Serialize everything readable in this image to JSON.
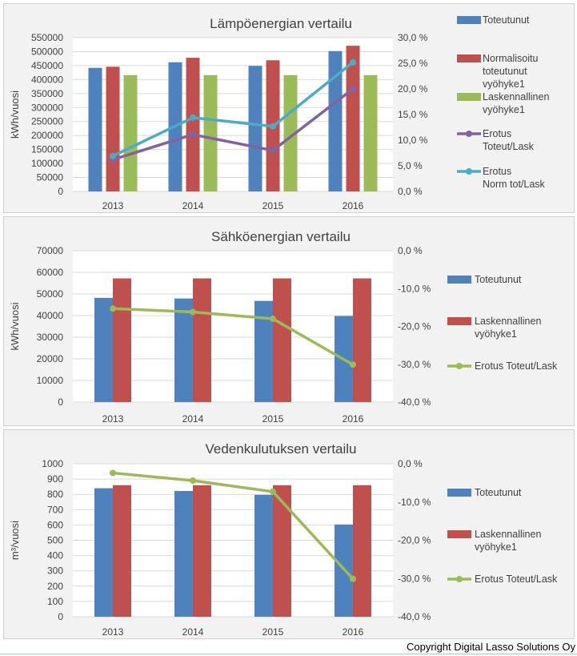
{
  "colors": {
    "blue": "#4f81bd",
    "red": "#c0504d",
    "green": "#9bbb59",
    "purple": "#8064a2",
    "cyan": "#4bacc6",
    "grid": "#d9d9d9",
    "text": "#404040"
  },
  "chart_data": [
    {
      "type": "bar",
      "title": "Lämpöenergian vertailu",
      "ylabel": "kWh/vuosi",
      "categories": [
        "2013",
        "2014",
        "2015",
        "2016"
      ],
      "ylim": [
        0,
        550000
      ],
      "y_ticks": [
        "0",
        "50000",
        "100000",
        "150000",
        "200000",
        "250000",
        "300000",
        "350000",
        "400000",
        "450000",
        "500000",
        "550000"
      ],
      "y2lim": [
        0,
        30
      ],
      "y2_ticks": [
        "0,0 %",
        "5,0 %",
        "10,0 %",
        "15,0 %",
        "20,0 %",
        "25,0 %",
        "30,0 %"
      ],
      "series": [
        {
          "name": "Toteutunut",
          "type": "bar",
          "color": "blue",
          "values": [
            442000,
            462000,
            449000,
            502000
          ]
        },
        {
          "name": "Normalisoitu toteutunut vyöhyke1",
          "type": "bar",
          "color": "red",
          "values": [
            446000,
            478000,
            469000,
            521000
          ]
        },
        {
          "name": "Laskennallinen vyöhyke1",
          "type": "bar",
          "color": "green",
          "values": [
            416000,
            416000,
            416000,
            416000
          ]
        },
        {
          "name": "Erotus Toteut/Lask",
          "type": "line",
          "color": "purple",
          "values": [
            6.2,
            11.1,
            8.0,
            20.0
          ]
        },
        {
          "name": "Erotus Norm tot/Lask",
          "type": "line",
          "color": "cyan",
          "values": [
            6.9,
            14.4,
            12.7,
            25.2
          ]
        }
      ],
      "legend": [
        {
          "label_lines": [
            "Toteutunut"
          ]
        },
        {
          "label_lines": [
            "Normalisoitu",
            "toteutunut",
            "vyöhyke1"
          ]
        },
        {
          "label_lines": [
            "Laskennallinen",
            "vyöhyke1"
          ]
        },
        {
          "label_lines": [
            "Erotus",
            "Toteut/Lask"
          ]
        },
        {
          "label_lines": [
            "Erotus",
            "Norm tot/Lask"
          ]
        }
      ]
    },
    {
      "type": "bar",
      "title": "Sähköenergian vertailu",
      "ylabel": "kWh/vuosi",
      "categories": [
        "2013",
        "2014",
        "2015",
        "2016"
      ],
      "ylim": [
        0,
        70000
      ],
      "y_ticks": [
        "0",
        "10000",
        "20000",
        "30000",
        "40000",
        "50000",
        "60000",
        "70000"
      ],
      "y2lim": [
        -40,
        0
      ],
      "y2_ticks": [
        "-40,0 %",
        "-30,0 %",
        "-20,0 %",
        "-10,0 %",
        "0,0 %"
      ],
      "series": [
        {
          "name": "Toteutunut",
          "type": "bar",
          "color": "blue",
          "values": [
            48200,
            47900,
            46800,
            39800
          ]
        },
        {
          "name": "Laskennallinen vyöhyke1",
          "type": "bar",
          "color": "red",
          "values": [
            57200,
            57200,
            57200,
            57200
          ]
        },
        {
          "name": "Erotus Toteut/Lask",
          "type": "line",
          "color": "green",
          "values": [
            -15.3,
            -16.2,
            -18.0,
            -30.1
          ]
        }
      ],
      "legend": [
        {
          "label_lines": [
            "Toteutunut"
          ]
        },
        {
          "label_lines": [
            "Laskennallinen",
            "vyöhyke1"
          ]
        },
        {
          "label_lines": [
            "Erotus Toteut/Lask"
          ]
        }
      ]
    },
    {
      "type": "bar",
      "title": "Vedenkulutuksen vertailu",
      "ylabel": "m³/vuosi",
      "categories": [
        "2013",
        "2014",
        "2015",
        "2016"
      ],
      "ylim": [
        0,
        1000
      ],
      "y_ticks": [
        "0",
        "100",
        "200",
        "300",
        "400",
        "500",
        "600",
        "700",
        "800",
        "900",
        "1000"
      ],
      "y2lim": [
        -40,
        0
      ],
      "y2_ticks": [
        "-40,0 %",
        "-30,0 %",
        "-20,0 %",
        "-10,0 %",
        "0,0 %"
      ],
      "series": [
        {
          "name": "Toteutunut",
          "type": "bar",
          "color": "blue",
          "values": [
            840,
            822,
            797,
            603
          ]
        },
        {
          "name": "Laskennallinen vyöhyke1",
          "type": "bar",
          "color": "red",
          "values": [
            860,
            860,
            860,
            860
          ]
        },
        {
          "name": "Erotus Toteut/Lask",
          "type": "line",
          "color": "green",
          "values": [
            -2.4,
            -4.4,
            -7.3,
            -30.1
          ]
        }
      ],
      "legend": [
        {
          "label_lines": [
            "Toteutunut"
          ]
        },
        {
          "label_lines": [
            "Laskennallinen",
            "vyöhyke1"
          ]
        },
        {
          "label_lines": [
            "Erotus Toteut/Lask"
          ]
        }
      ]
    }
  ],
  "footer": {
    "copyright": "Copyright Digital Lasso Solutions Oy"
  }
}
